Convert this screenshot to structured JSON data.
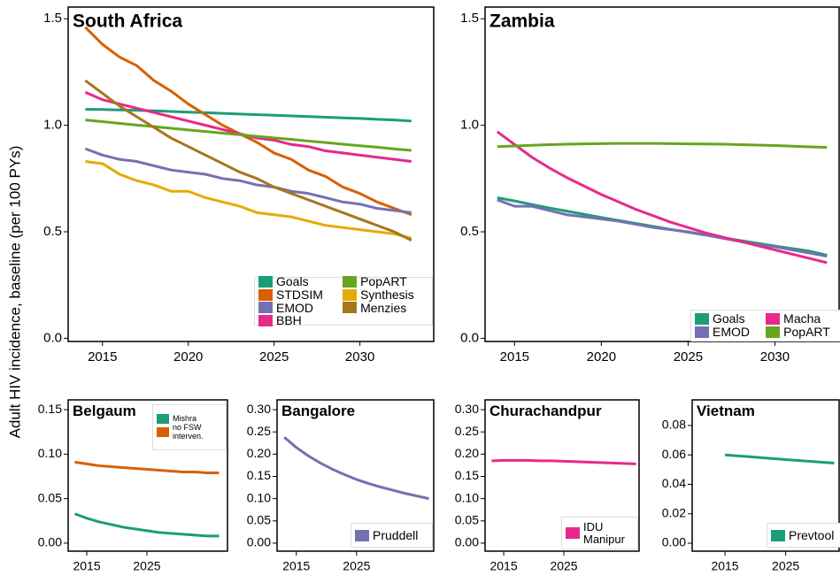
{
  "y_label": "Adult HIV incidence, baseline (per 100 PYs)",
  "chart_data": [
    {
      "type": "line",
      "title": "South Africa",
      "x": [
        2014,
        2015,
        2016,
        2017,
        2018,
        2019,
        2020,
        2021,
        2022,
        2023,
        2024,
        2025,
        2026,
        2027,
        2028,
        2029,
        2030,
        2031,
        2032,
        2033
      ],
      "xlim": [
        2013.0,
        2034.3
      ],
      "xticks": [
        2015,
        2020,
        2025,
        2030
      ],
      "ylim": [
        -0.015,
        1.555
      ],
      "yticks": [
        {
          "value": 0,
          "label": "0.0"
        },
        0.5,
        {
          "value": 1,
          "label": "1.0"
        },
        1.5
      ],
      "legend": "bottom-right",
      "series": [
        {
          "name": "Goals",
          "color": "#1b9e77",
          "values": [
            1.075,
            1.074,
            1.072,
            1.07,
            1.068,
            1.065,
            1.062,
            1.059,
            1.056,
            1.053,
            1.05,
            1.047,
            1.044,
            1.041,
            1.038,
            1.035,
            1.032,
            1.028,
            1.025,
            1.02
          ]
        },
        {
          "name": "STDSIM",
          "color": "#d95f02",
          "values": [
            1.46,
            1.38,
            1.32,
            1.28,
            1.21,
            1.16,
            1.1,
            1.05,
            1.0,
            0.96,
            0.92,
            0.87,
            0.84,
            0.79,
            0.76,
            0.71,
            0.68,
            0.64,
            0.61,
            0.58
          ]
        },
        {
          "name": "EMOD",
          "color": "#7570b3",
          "values": [
            0.89,
            0.86,
            0.84,
            0.83,
            0.81,
            0.79,
            0.78,
            0.77,
            0.75,
            0.74,
            0.72,
            0.71,
            0.69,
            0.68,
            0.66,
            0.64,
            0.63,
            0.61,
            0.6,
            0.59
          ]
        },
        {
          "name": "BBH",
          "color": "#e7298a",
          "values": [
            1.155,
            1.12,
            1.1,
            1.08,
            1.06,
            1.04,
            1.02,
            1.0,
            0.98,
            0.96,
            0.94,
            0.93,
            0.91,
            0.9,
            0.88,
            0.87,
            0.86,
            0.85,
            0.84,
            0.83
          ]
        },
        {
          "name": "PopART",
          "color": "#66a61e",
          "values": [
            1.025,
            1.017,
            1.009,
            1.001,
            0.994,
            0.986,
            0.978,
            0.971,
            0.963,
            0.956,
            0.948,
            0.941,
            0.934,
            0.926,
            0.919,
            0.911,
            0.904,
            0.897,
            0.889,
            0.882
          ]
        },
        {
          "name": "Synthesis",
          "color": "#e6ab02",
          "values": [
            0.83,
            0.82,
            0.77,
            0.74,
            0.72,
            0.69,
            0.69,
            0.66,
            0.64,
            0.62,
            0.59,
            0.58,
            0.57,
            0.55,
            0.53,
            0.52,
            0.51,
            0.5,
            0.49,
            0.47
          ]
        },
        {
          "name": "Menzies",
          "color": "#a6761d",
          "values": [
            1.21,
            1.15,
            1.09,
            1.04,
            0.99,
            0.94,
            0.9,
            0.86,
            0.82,
            0.78,
            0.75,
            0.71,
            0.68,
            0.65,
            0.62,
            0.59,
            0.56,
            0.53,
            0.5,
            0.46
          ]
        }
      ]
    },
    {
      "type": "line",
      "title": "Zambia",
      "x": [
        2014,
        2015,
        2016,
        2017,
        2018,
        2019,
        2020,
        2021,
        2022,
        2023,
        2024,
        2025,
        2026,
        2027,
        2028,
        2029,
        2030,
        2031,
        2032,
        2033
      ],
      "xlim": [
        2013.3,
        2033.7
      ],
      "xticks": [
        2015,
        2020,
        2025,
        2030
      ],
      "ylim": [
        -0.015,
        1.555
      ],
      "yticks": [
        {
          "value": 0,
          "label": "0.0"
        },
        0.5,
        {
          "value": 1,
          "label": "1.0"
        },
        1.5
      ],
      "legend": "bottom-right",
      "series": [
        {
          "name": "Goals",
          "color": "#1b9e77",
          "values": [
            0.66,
            0.645,
            0.628,
            0.612,
            0.597,
            0.582,
            0.567,
            0.553,
            0.539,
            0.525,
            0.511,
            0.498,
            0.485,
            0.472,
            0.459,
            0.446,
            0.433,
            0.421,
            0.409,
            0.39
          ]
        },
        {
          "name": "EMOD",
          "color": "#7570b3",
          "values": [
            0.65,
            0.62,
            0.62,
            0.6,
            0.58,
            0.57,
            0.56,
            0.55,
            0.535,
            0.52,
            0.51,
            0.5,
            0.485,
            0.47,
            0.455,
            0.44,
            0.43,
            0.415,
            0.4,
            0.385
          ]
        },
        {
          "name": "Macha",
          "color": "#e7298a",
          "values": [
            0.97,
            0.91,
            0.85,
            0.8,
            0.755,
            0.715,
            0.675,
            0.64,
            0.605,
            0.575,
            0.545,
            0.52,
            0.495,
            0.475,
            0.455,
            0.435,
            0.415,
            0.395,
            0.375,
            0.355
          ]
        },
        {
          "name": "PopART",
          "color": "#66a61e",
          "values": [
            0.9,
            0.903,
            0.906,
            0.909,
            0.911,
            0.913,
            0.914,
            0.915,
            0.915,
            0.915,
            0.914,
            0.913,
            0.912,
            0.911,
            0.909,
            0.907,
            0.905,
            0.902,
            0.899,
            0.896
          ]
        }
      ]
    },
    {
      "type": "line",
      "title": "Belgaum",
      "x": [
        2013,
        2015,
        2017,
        2019,
        2021,
        2023,
        2025,
        2027,
        2029,
        2031,
        2033,
        2035,
        2037
      ],
      "xlim": [
        2011.9,
        2038.4
      ],
      "xticks": [
        2015,
        2025
      ],
      "ylim": [
        -0.009,
        0.161
      ],
      "yticks": [
        {
          "value": 0,
          "label": "0.00"
        },
        0.05,
        {
          "value": 0.1,
          "label": "0.10"
        },
        0.15
      ],
      "legend": "top-right",
      "series": [
        {
          "name": "Mishra",
          "color": "#1b9e77",
          "values": [
            0.033,
            0.028,
            0.024,
            0.021,
            0.018,
            0.016,
            0.014,
            0.012,
            0.011,
            0.01,
            0.009,
            0.008,
            0.008
          ]
        },
        {
          "name": "no FSW interven.",
          "color": "#d95f02",
          "values": [
            0.091,
            0.089,
            0.087,
            0.086,
            0.085,
            0.084,
            0.083,
            0.082,
            0.081,
            0.08,
            0.08,
            0.079,
            0.079
          ]
        }
      ]
    },
    {
      "type": "line",
      "title": "Bangalore",
      "x": [
        2013,
        2015,
        2017,
        2019,
        2021,
        2023,
        2025,
        2027,
        2029,
        2031,
        2033,
        2035,
        2037
      ],
      "xlim": [
        2011.8,
        2037.8
      ],
      "xticks": [
        2015,
        2025
      ],
      "ylim": [
        -0.018,
        0.322
      ],
      "yticks": [
        {
          "value": 0,
          "label": "0.00"
        },
        0.05,
        {
          "value": 0.1,
          "label": "0.10"
        },
        0.15,
        {
          "value": 0.2,
          "label": "0.20"
        },
        0.25,
        {
          "value": 0.3,
          "label": "0.30"
        }
      ],
      "legend": "bottom-right",
      "series": [
        {
          "name": "Pruddell",
          "color": "#7570b3",
          "values": [
            0.238,
            0.215,
            0.196,
            0.18,
            0.166,
            0.154,
            0.143,
            0.134,
            0.126,
            0.119,
            0.112,
            0.106,
            0.1
          ]
        }
      ]
    },
    {
      "type": "line",
      "title": "Churachandpur",
      "x": [
        2013,
        2015,
        2017,
        2019,
        2021,
        2023,
        2025,
        2027,
        2029,
        2031,
        2033,
        2035,
        2037
      ],
      "xlim": [
        2011.9,
        2037.5
      ],
      "xticks": [
        2015,
        2025
      ],
      "ylim": [
        -0.018,
        0.322
      ],
      "yticks": [
        {
          "value": 0,
          "label": "0.00"
        },
        0.05,
        {
          "value": 0.1,
          "label": "0.10"
        },
        0.15,
        {
          "value": 0.2,
          "label": "0.20"
        },
        0.25,
        {
          "value": 0.3,
          "label": "0.30"
        }
      ],
      "legend": "bottom-right",
      "series": [
        {
          "name": "IDU Manipur",
          "color": "#e7298a",
          "values": [
            0.185,
            0.186,
            0.186,
            0.186,
            0.185,
            0.185,
            0.184,
            0.183,
            0.182,
            0.181,
            0.18,
            0.179,
            0.178
          ]
        }
      ]
    },
    {
      "type": "line",
      "title": "Vietnam",
      "x": [
        2015,
        2017,
        2019,
        2021,
        2023,
        2025,
        2027,
        2029,
        2031,
        2033
      ],
      "xlim": [
        2009.6,
        2033.8
      ],
      "xticks": [
        2015,
        2025
      ],
      "ylim": [
        -0.0054,
        0.0974
      ],
      "yticks": [
        {
          "value": 0,
          "label": "0.00"
        },
        0.02,
        0.04,
        0.06,
        0.08
      ],
      "legend": "bottom-right",
      "series": [
        {
          "name": "Prevtool",
          "color": "#1b9e77",
          "values": [
            0.06,
            0.0594,
            0.0588,
            0.0581,
            0.0575,
            0.0568,
            0.0562,
            0.0556,
            0.055,
            0.0544
          ]
        }
      ]
    }
  ]
}
